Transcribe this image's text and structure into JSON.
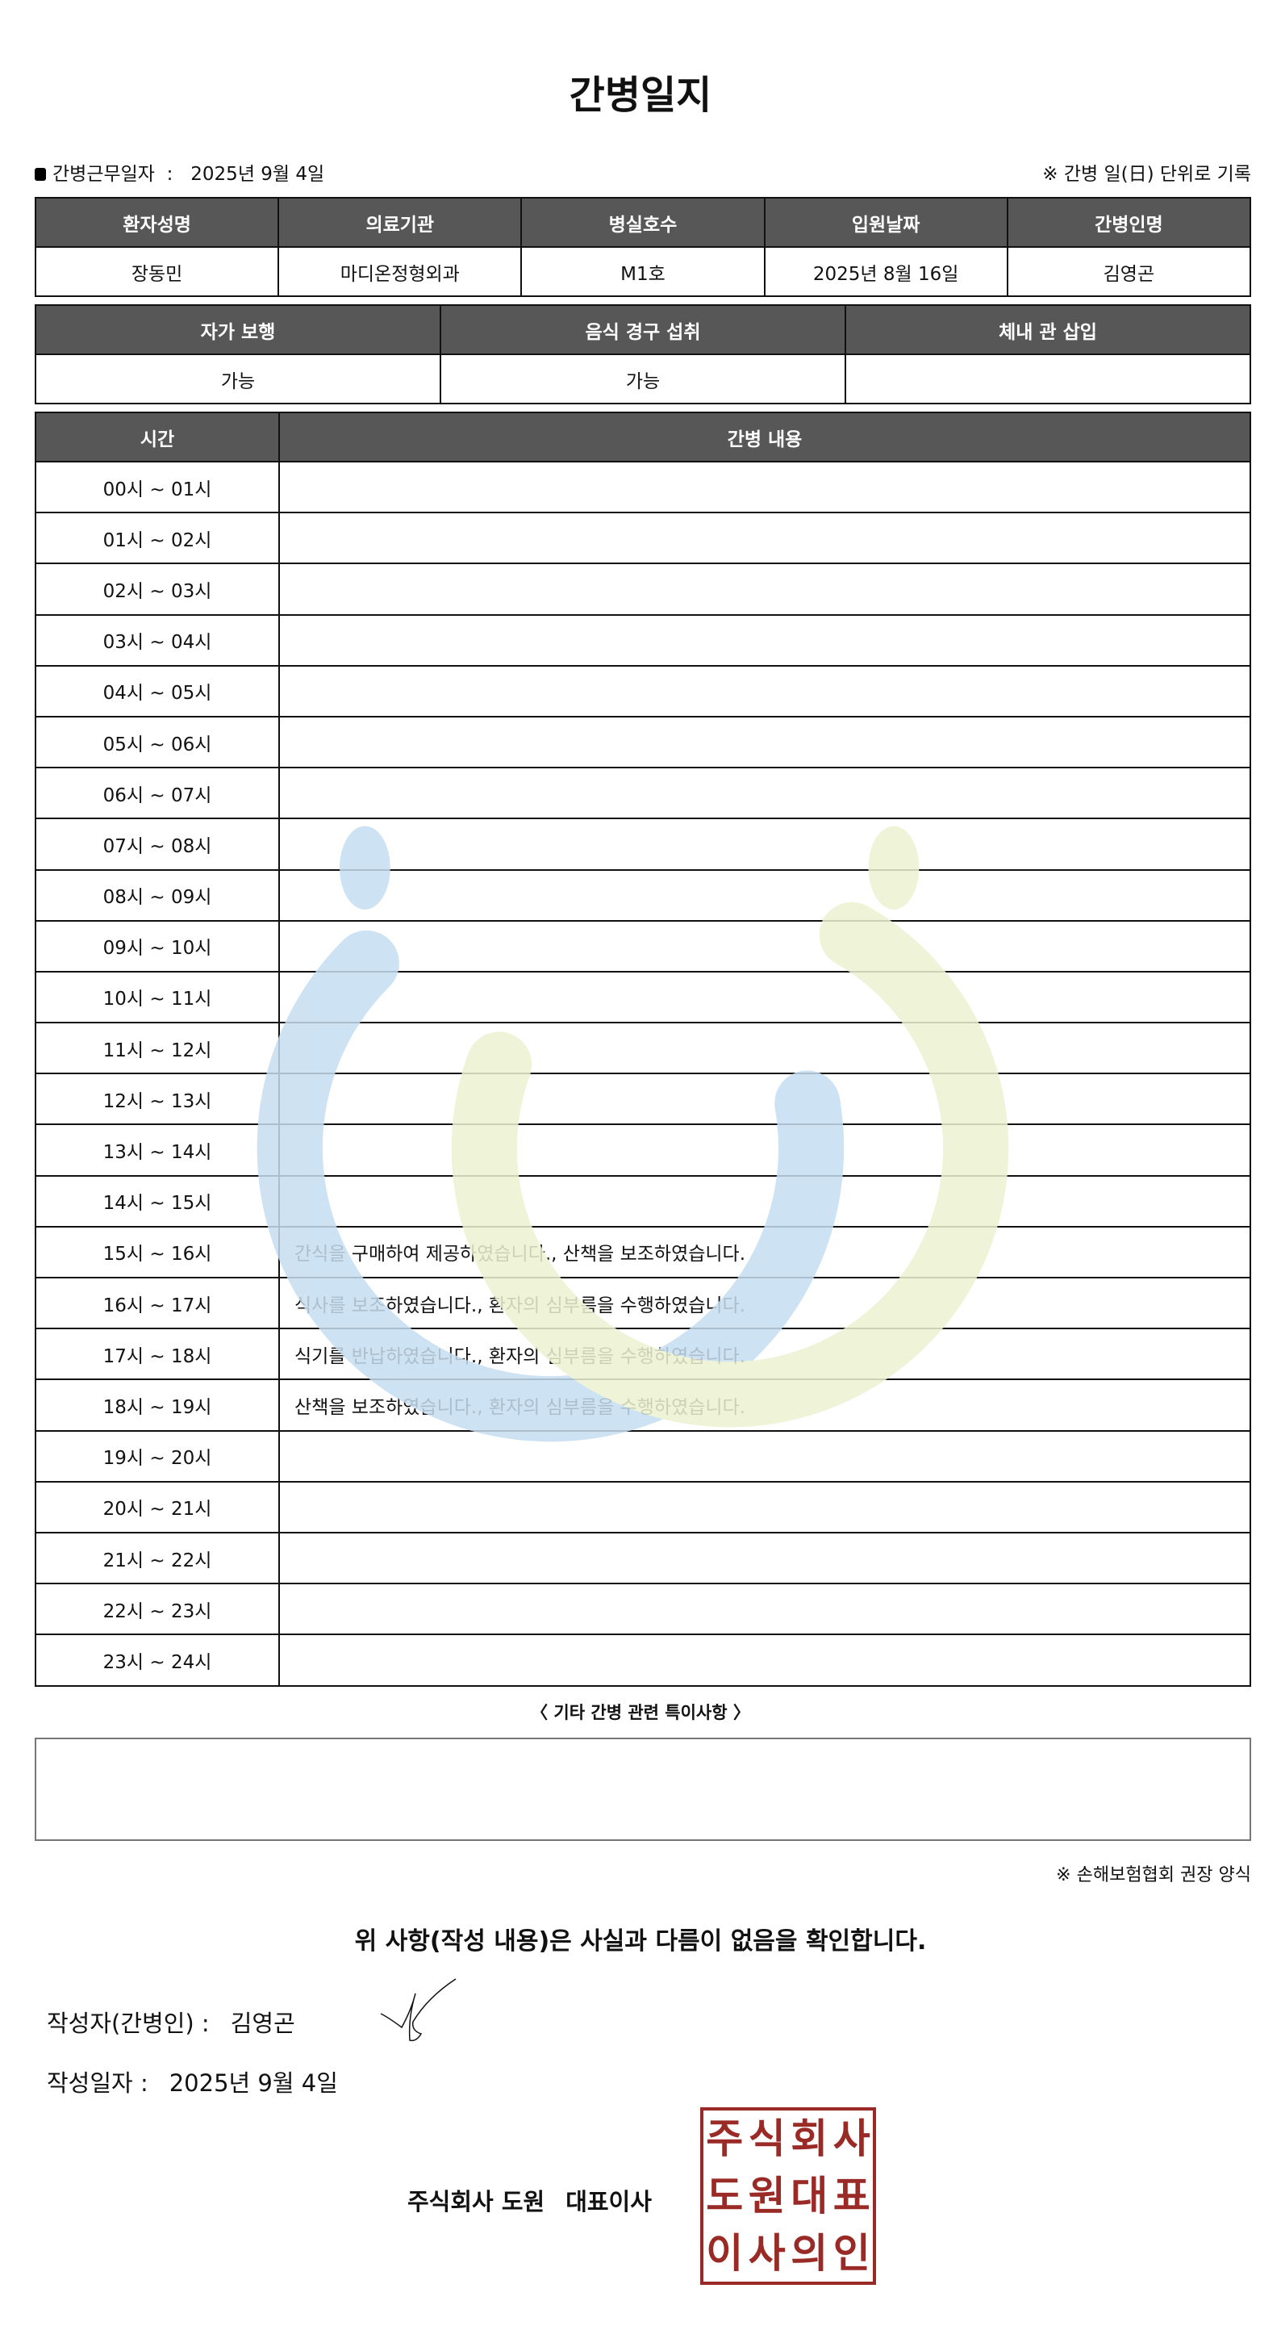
{
  "title": "간병일지",
  "work_date_label": "간병근무일자",
  "work_date": "2025년 9월 4일",
  "record_note": "※ 간병 일(日) 단위로 기록",
  "info": {
    "headers": [
      "환자성명",
      "의료기관",
      "병실호수",
      "입원날짜",
      "간병인명"
    ],
    "values": [
      "장동민",
      "마디온정형외과",
      "M1호",
      "2025년 8월 16일",
      "김영곤"
    ]
  },
  "status": {
    "headers": [
      "자가 보행",
      "음식 경구 섭취",
      "체내 관 삽입"
    ],
    "values": [
      "가능",
      "가능",
      ""
    ]
  },
  "log": {
    "headers": [
      "시간",
      "간병 내용"
    ],
    "rows": [
      {
        "time": "00시 ~ 01시",
        "content": ""
      },
      {
        "time": "01시 ~ 02시",
        "content": ""
      },
      {
        "time": "02시 ~ 03시",
        "content": ""
      },
      {
        "time": "03시 ~ 04시",
        "content": ""
      },
      {
        "time": "04시 ~ 05시",
        "content": ""
      },
      {
        "time": "05시 ~ 06시",
        "content": ""
      },
      {
        "time": "06시 ~ 07시",
        "content": ""
      },
      {
        "time": "07시 ~ 08시",
        "content": ""
      },
      {
        "time": "08시 ~ 09시",
        "content": ""
      },
      {
        "time": "09시 ~ 10시",
        "content": ""
      },
      {
        "time": "10시 ~ 11시",
        "content": ""
      },
      {
        "time": "11시 ~ 12시",
        "content": ""
      },
      {
        "time": "12시 ~ 13시",
        "content": ""
      },
      {
        "time": "13시 ~ 14시",
        "content": ""
      },
      {
        "time": "14시 ~ 15시",
        "content": ""
      },
      {
        "time": "15시 ~ 16시",
        "content": "간식을 구매하여 제공하였습니다., 산책을 보조하였습니다."
      },
      {
        "time": "16시 ~ 17시",
        "content": "식사를 보조하였습니다., 환자의 심부름을 수행하였습니다."
      },
      {
        "time": "17시 ~ 18시",
        "content": "식기를 반납하였습니다., 환자의 심부름을 수행하였습니다."
      },
      {
        "time": "18시 ~ 19시",
        "content": "산책을 보조하였습니다., 환자의 심부름을 수행하였습니다."
      },
      {
        "time": "19시 ~ 20시",
        "content": ""
      },
      {
        "time": "20시 ~ 21시",
        "content": ""
      },
      {
        "time": "21시 ~ 22시",
        "content": ""
      },
      {
        "time": "22시 ~ 23시",
        "content": ""
      },
      {
        "time": "23시 ~ 24시",
        "content": ""
      }
    ]
  },
  "notes_label": "〈 기타 간병 관련 특이사항 〉",
  "notes": "",
  "form_note": "※ 손해보험협회 권장 양식",
  "confirm_text": "위 사항(작성 내용)은 사실과 다름이 없음을 확인합니다.",
  "writer_label": "작성자(간병인) :",
  "writer_name": "김영곤",
  "write_date_label": "작성일자 :",
  "write_date": "2025년 9월 4일",
  "company": "주식회사 도원",
  "ceo_label": "대표이사",
  "stamp_text": "주식회사도원대표이사의인",
  "colors": {
    "header_bg": "#575757",
    "stamp": "#9a2a26",
    "watermark_blue": "#c5ddf0",
    "watermark_green": "#edf3d3"
  }
}
